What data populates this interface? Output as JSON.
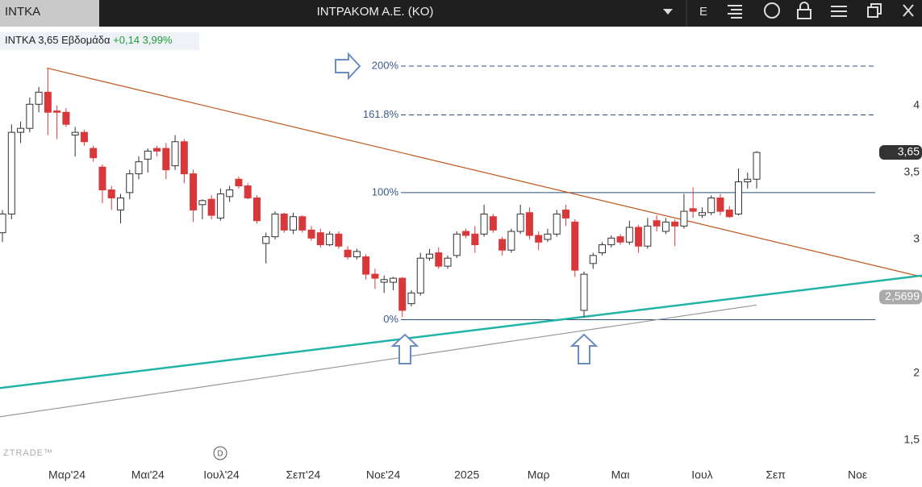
{
  "header": {
    "tab": "INTKA",
    "title": "INTPAKOM A.E. (KO)",
    "menu": "E"
  },
  "legend": {
    "symbol": "INTKA",
    "last": "3,65",
    "period": "Εβδομάδα",
    "change": "+0,14",
    "change_pct": "3,99%"
  },
  "watermark": "ZTRADE™",
  "event_marker": "D",
  "chart_data": {
    "type": "candlestick",
    "xlim": [
      -0.27,
      97.2
    ],
    "xticks": [
      {
        "value": 7.1,
        "label": "Μαρ'24"
      },
      {
        "value": 16.0,
        "label": "Μαι'24"
      },
      {
        "value": 24.1,
        "label": "Ιουλ'24"
      },
      {
        "value": 33.1,
        "label": "Σεπ'24"
      },
      {
        "value": 41.9,
        "label": "Νοε'24"
      },
      {
        "value": 51.1,
        "label": "2025"
      },
      {
        "value": 59.0,
        "label": "Μαρ"
      },
      {
        "value": 68.0,
        "label": "Μαι"
      },
      {
        "value": 77.0,
        "label": "Ιουλ"
      },
      {
        "value": 85.1,
        "label": "Σεπ"
      },
      {
        "value": 94.1,
        "label": "Νοε"
      }
    ],
    "ylim": [
      1.325,
      4.59
    ],
    "yticks": [
      4,
      {
        "value": 3.5,
        "label": "3,5"
      },
      3,
      2,
      {
        "value": 1.5,
        "label": "1,5"
      }
    ],
    "up_color": "#ffffff",
    "down_color": "#d9383a",
    "open": [
      3.05,
      3.19,
      3.8,
      3.83,
      4.01,
      4.1,
      3.96,
      3.95,
      3.78,
      3.8,
      3.68,
      3.54,
      3.37,
      3.22,
      3.35,
      3.49,
      3.6,
      3.68,
      3.68,
      3.55,
      3.73,
      3.49,
      3.26,
      3.3,
      3.16,
      3.32,
      3.45,
      3.4,
      3.31,
      2.97,
      3.02,
      3.19,
      3.07,
      3.17,
      3.07,
      3.05,
      2.96,
      3.04,
      2.92,
      2.87,
      2.87,
      2.74,
      2.68,
      2.68,
      2.71,
      2.52,
      2.6,
      2.86,
      2.9,
      2.8,
      2.88,
      3.06,
      3.04,
      3.04,
      3.17,
      3.0,
      2.92,
      3.06,
      3.2,
      3.03,
      3.0,
      3.04,
      3.22,
      3.13,
      2.47,
      2.82,
      2.9,
      2.96,
      3.02,
      2.98,
      3.09,
      2.95,
      3.14,
      3.06,
      3.13,
      3.1,
      3.23,
      3.18,
      3.2,
      3.31,
      3.22,
      3.19,
      3.43,
      3.45
    ],
    "high": [
      3.22,
      3.86,
      3.88,
      4.06,
      4.14,
      4.28,
      4.0,
      3.98,
      3.84,
      3.82,
      3.7,
      3.56,
      3.4,
      3.34,
      3.52,
      3.62,
      3.68,
      3.7,
      3.72,
      3.78,
      3.75,
      3.52,
      3.3,
      3.33,
      3.38,
      3.4,
      3.47,
      3.42,
      3.33,
      3.05,
      3.21,
      3.2,
      3.2,
      3.18,
      3.1,
      3.08,
      3.06,
      3.06,
      2.95,
      2.93,
      2.89,
      2.78,
      2.73,
      2.72,
      2.72,
      2.62,
      2.9,
      2.93,
      2.94,
      2.88,
      3.06,
      3.08,
      3.1,
      3.26,
      3.19,
      3.02,
      3.08,
      3.26,
      3.24,
      3.06,
      3.08,
      3.22,
      3.26,
      3.15,
      2.76,
      2.9,
      2.98,
      3.03,
      3.04,
      3.14,
      3.11,
      3.16,
      3.18,
      3.16,
      3.15,
      3.34,
      3.39,
      3.24,
      3.33,
      3.34,
      3.25,
      3.53,
      3.5,
      3.66
    ],
    "low": [
      2.98,
      3.15,
      3.72,
      3.8,
      3.95,
      3.78,
      3.75,
      3.84,
      3.62,
      3.7,
      3.58,
      3.27,
      3.22,
      3.12,
      3.3,
      3.45,
      3.5,
      3.62,
      3.45,
      3.52,
      3.42,
      3.13,
      3.15,
      3.15,
      3.14,
      3.28,
      3.38,
      3.3,
      3.12,
      2.82,
      3.0,
      3.05,
      3.04,
      3.05,
      2.99,
      2.94,
      2.95,
      2.93,
      2.85,
      2.85,
      2.7,
      2.63,
      2.6,
      2.62,
      2.42,
      2.5,
      2.58,
      2.84,
      2.78,
      2.78,
      2.86,
      3.01,
      2.9,
      3.02,
      3.05,
      2.88,
      2.9,
      3.04,
      3.0,
      2.92,
      2.98,
      3.02,
      3.1,
      2.72,
      2.42,
      2.78,
      2.88,
      2.94,
      2.96,
      2.96,
      2.9,
      2.93,
      3.06,
      3.04,
      2.95,
      3.08,
      3.16,
      3.16,
      3.18,
      3.18,
      3.16,
      3.18,
      3.38,
      3.38
    ],
    "close": [
      3.19,
      3.8,
      3.83,
      4.01,
      4.1,
      3.95,
      3.95,
      3.86,
      3.8,
      3.73,
      3.61,
      3.37,
      3.31,
      3.31,
      3.49,
      3.58,
      3.66,
      3.66,
      3.52,
      3.73,
      3.49,
      3.22,
      3.29,
      3.18,
      3.34,
      3.37,
      3.4,
      3.31,
      3.14,
      3.02,
      3.19,
      3.07,
      3.17,
      3.07,
      3.01,
      2.96,
      3.04,
      2.95,
      2.87,
      2.91,
      2.74,
      2.71,
      2.7,
      2.71,
      2.47,
      2.6,
      2.86,
      2.89,
      2.8,
      2.86,
      3.04,
      3.03,
      2.96,
      3.19,
      3.07,
      2.92,
      3.06,
      3.19,
      3.03,
      2.98,
      3.04,
      3.19,
      3.16,
      2.77,
      2.74,
      2.88,
      2.96,
      3.01,
      2.98,
      3.09,
      2.95,
      3.1,
      3.1,
      3.13,
      3.1,
      3.21,
      3.21,
      3.2,
      3.31,
      3.21,
      3.17,
      3.43,
      3.45,
      3.65
    ],
    "fib_levels": [
      {
        "label": "200%",
        "value": 4.295,
        "dashed": true
      },
      {
        "label": "161.8%",
        "value": 3.93,
        "dashed": true
      },
      {
        "label": "100%",
        "value": 3.35,
        "dashed": false
      },
      {
        "label": "0%",
        "value": 2.4,
        "dashed": false
      }
    ],
    "trendlines": [
      {
        "color": "#c0561a",
        "x": [
          4.9,
          101.2
        ],
        "y": [
          4.28,
          2.72
        ]
      },
      {
        "color": "#22b3a8",
        "x": [
          -0.27,
          101.2
        ],
        "y": [
          1.89,
          2.73
        ]
      },
      {
        "color": "#999999",
        "x": [
          -0.27,
          83
        ],
        "y": [
          1.675,
          2.51
        ]
      }
    ],
    "price_labels": [
      {
        "value": 3.65,
        "label": "3,65",
        "color": "#333333"
      },
      {
        "value": 2.5699,
        "label": "2,5699",
        "color": "#aaaaaa"
      }
    ]
  }
}
